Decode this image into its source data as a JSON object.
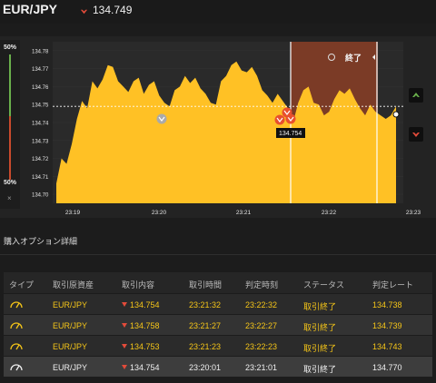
{
  "header": {
    "pair": "EUR/JPY",
    "price": "134.749",
    "direction_icon": "down-arrow-icon"
  },
  "gauge": {
    "top_label": "50%",
    "bottom_label": "50%",
    "close_label": "×"
  },
  "chart": {
    "y_ticks": [
      "134.78",
      "134.77",
      "134.76",
      "134.75",
      "134.74",
      "134.73",
      "134.72",
      "134.71",
      "134.70"
    ],
    "x_ticks": [
      "23:19",
      "23:20",
      "23:21",
      "23:22",
      "23:23"
    ],
    "expiry_label": "終了",
    "marker_label": "134.754",
    "colors": {
      "area": "#ffc125",
      "expired": "#7b3b26",
      "up": "#6ab04c",
      "down": "#e24b3a"
    },
    "side_buttons": [
      "up-arrow-icon",
      "down-arrow-icon"
    ]
  },
  "chart_data": {
    "type": "area",
    "x_ticks": [
      "23:19",
      "23:20",
      "23:21",
      "23:22",
      "23:23"
    ],
    "ylim": [
      134.695,
      134.785
    ],
    "values": [
      134.706,
      134.72,
      134.717,
      134.728,
      134.742,
      134.752,
      134.748,
      134.763,
      134.759,
      134.764,
      134.772,
      134.771,
      134.763,
      134.76,
      134.757,
      134.763,
      134.765,
      134.756,
      134.761,
      134.763,
      134.755,
      134.751,
      134.749,
      134.758,
      134.76,
      134.766,
      134.762,
      134.765,
      134.759,
      134.756,
      134.751,
      134.75,
      134.763,
      134.766,
      134.772,
      134.774,
      134.769,
      134.768,
      134.771,
      134.766,
      134.758,
      134.755,
      134.751,
      134.756,
      134.752,
      134.748,
      134.74,
      134.751,
      134.758,
      134.76,
      134.751,
      134.75,
      134.744,
      134.746,
      134.753,
      134.758,
      134.756,
      134.759,
      134.753,
      134.748,
      134.744,
      134.75,
      134.746,
      134.744,
      134.742,
      134.744,
      134.749
    ]
  },
  "section_title": "購入オプション詳細",
  "table": {
    "headers": [
      "タイプ",
      "取引原資産",
      "取引内容",
      "取引時間",
      "判定時刻",
      "ステータス",
      "判定レート"
    ],
    "rows": [
      {
        "asset": "EUR/JPY",
        "content": "134.754",
        "time": "23:21:32",
        "judge": "23:22:32",
        "status": "取引終了",
        "rate": "134.738"
      },
      {
        "asset": "EUR/JPY",
        "content": "134.758",
        "time": "23:21:27",
        "judge": "23:22:27",
        "status": "取引終了",
        "rate": "134.739"
      },
      {
        "asset": "EUR/JPY",
        "content": "134.753",
        "time": "23:21:23",
        "judge": "23:22:23",
        "status": "取引終了",
        "rate": "134.743"
      },
      {
        "asset": "EUR/JPY",
        "content": "134.754",
        "time": "23:20:01",
        "judge": "23:21:01",
        "status": "取引終了",
        "rate": "134.770"
      }
    ]
  }
}
